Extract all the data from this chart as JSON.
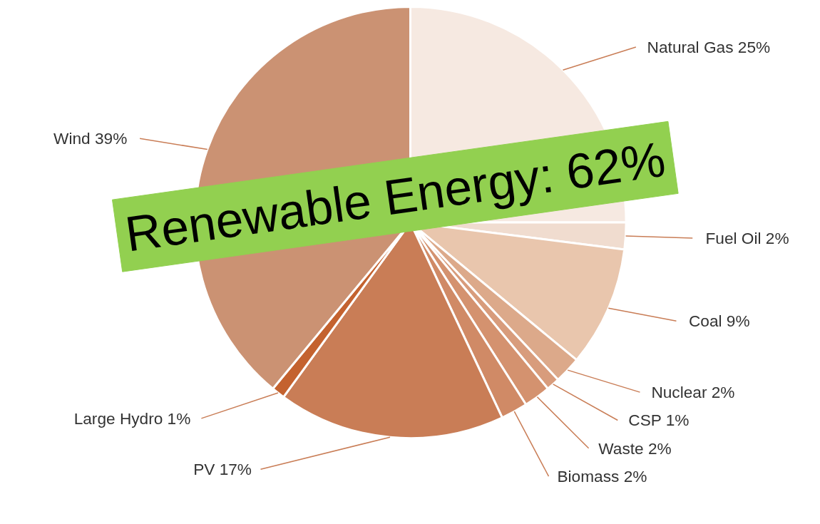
{
  "chart_data": {
    "type": "pie",
    "categories": [
      "Natural Gas",
      "Fuel Oil",
      "Coal",
      "Nuclear",
      "CSP",
      "Waste",
      "Biomass",
      "PV",
      "Large Hydro",
      "Wind"
    ],
    "values": [
      25,
      2,
      9,
      2,
      1,
      2,
      2,
      17,
      1,
      39
    ],
    "value_labels": [
      "25%",
      "2%",
      "9%",
      "2%",
      "1%",
      "2%",
      "2%",
      "17%",
      "1%",
      "39%"
    ],
    "colors": [
      "#f6e9e1",
      "#f0dccf",
      "#e9c6ad",
      "#dca98a",
      "#d89c7c",
      "#d4926f",
      "#d08a66",
      "#c97d56",
      "#c4622f",
      "#cb9273"
    ],
    "annotations": [
      "Renewable Energy: 62%"
    ]
  }
}
